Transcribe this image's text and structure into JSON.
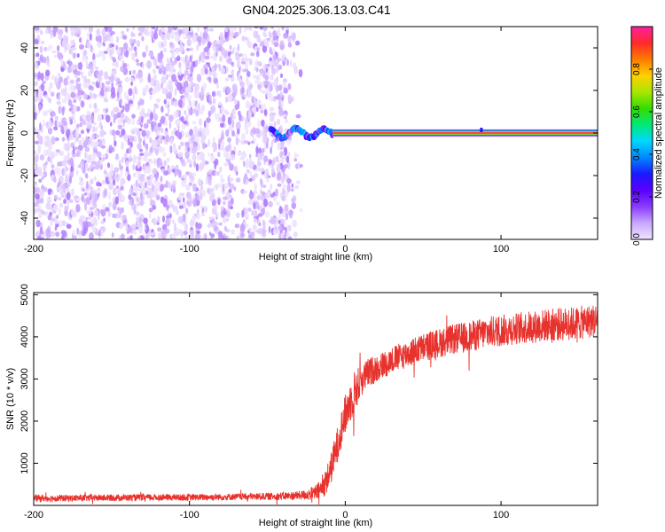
{
  "title": "GN04.2025.306.13.03.C41",
  "chart_data": [
    {
      "type": "heatmap",
      "title": "GN04.2025.306.13.03.C41",
      "xlabel": "Height of straight line (km)",
      "ylabel": "Frequency (Hz)",
      "xlim": [
        -200,
        162
      ],
      "ylim": [
        -50,
        50
      ],
      "xticks": [
        "-200",
        "-100",
        "0",
        "100"
      ],
      "yticks": [
        "-40",
        "-20",
        "0",
        "20",
        "40"
      ],
      "grid": false,
      "colorbar": {
        "label": "Normalized spectral amplitude",
        "range": [
          0,
          1
        ],
        "ticks": [
          "0.0",
          "0.2",
          "0.4",
          "0.6",
          "0.8"
        ],
        "colormap": [
          "#f0e6ff",
          "#c9a6ff",
          "#8a3cff",
          "#5a00ff",
          "#1a1aff",
          "#0088ff",
          "#00d8ff",
          "#00e87a",
          "#33dd00",
          "#a8e600",
          "#ffd000",
          "#ff7a00",
          "#ff2a2a",
          "#ff1fa0"
        ]
      },
      "features": [
        {
          "name": "noise",
          "x_range": [
            -200,
            -28
          ],
          "freq_range": [
            -50,
            50
          ],
          "amplitude_range": [
            0.0,
            0.12
          ]
        },
        {
          "name": "transition",
          "x_range": [
            -48,
            -8
          ],
          "freq_range": [
            -5,
            5
          ],
          "amplitude_range": [
            0.1,
            0.45
          ]
        },
        {
          "name": "tone",
          "x_range": [
            -8,
            162
          ],
          "frequency": 0,
          "half_width": 1.5,
          "amplitude_peak": 1.0
        }
      ]
    },
    {
      "type": "line",
      "xlabel": "Height of straight line (km)",
      "ylabel": "SNR (10 * v/v)",
      "xlim": [
        -200,
        162
      ],
      "ylim": [
        0,
        5050
      ],
      "xticks": [
        "-200",
        "-100",
        "0",
        "100"
      ],
      "yticks": [
        "1000",
        "2000",
        "3000",
        "4000",
        "5000"
      ],
      "grid": false,
      "color": "#e8322d",
      "series": [
        {
          "x": [
            -200,
            -180,
            -160,
            -140,
            -120,
            -100,
            -80,
            -60,
            -45,
            -35,
            -28,
            -22,
            -18,
            -15,
            -12,
            -9,
            -6,
            -3,
            0,
            3,
            6,
            10,
            15,
            20,
            30,
            40,
            50,
            60,
            70,
            80,
            90,
            100,
            110,
            120,
            130,
            140,
            150,
            162
          ],
          "values": [
            170,
            170,
            180,
            185,
            190,
            190,
            200,
            210,
            215,
            225,
            240,
            270,
            320,
            400,
            600,
            900,
            1300,
            1750,
            2150,
            2450,
            2700,
            2950,
            3150,
            3250,
            3450,
            3600,
            3750,
            3850,
            3950,
            4000,
            4100,
            4150,
            4200,
            4230,
            4280,
            4300,
            4330,
            4400
          ],
          "noise_amplitude": [
            80,
            80,
            80,
            80,
            80,
            80,
            80,
            80,
            90,
            100,
            110,
            150,
            200,
            260,
            320,
            380,
            420,
            450,
            480,
            500,
            520,
            380,
            350,
            330,
            320,
            330,
            340,
            350,
            360,
            370,
            380,
            380,
            380,
            390,
            390,
            400,
            400,
            400
          ]
        }
      ]
    }
  ]
}
